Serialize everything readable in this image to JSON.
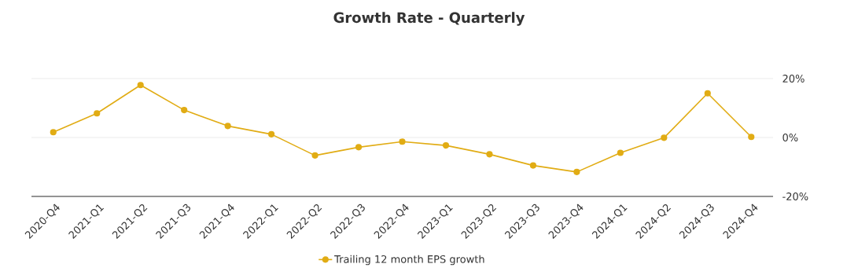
{
  "chart_data": {
    "type": "line",
    "title": "Growth Rate - Quarterly",
    "categories": [
      "2020-Q4",
      "2021-Q1",
      "2021-Q2",
      "2021-Q3",
      "2021-Q4",
      "2022-Q1",
      "2022-Q2",
      "2022-Q3",
      "2022-Q4",
      "2023-Q1",
      "2023-Q2",
      "2023-Q3",
      "2023-Q4",
      "2024-Q1",
      "2024-Q2",
      "2024-Q3",
      "2024-Q4"
    ],
    "series": [
      {
        "name": "Trailing 12 month EPS growth",
        "color": "#e1ac14",
        "values": [
          1.8,
          8.2,
          17.8,
          9.3,
          3.9,
          1.1,
          -6.1,
          -3.3,
          -1.4,
          -2.7,
          -5.7,
          -9.5,
          -11.7,
          -5.2,
          -0.1,
          15.0,
          0.2
        ]
      }
    ],
    "ylim": [
      -20,
      20
    ],
    "yticks": [
      {
        "value": -20,
        "label": "-20%"
      },
      {
        "value": 0,
        "label": "0%"
      },
      {
        "value": 20,
        "label": "20%"
      }
    ],
    "grid": "y",
    "legend": "bottom",
    "marker": "circle",
    "line_style": "solid"
  }
}
